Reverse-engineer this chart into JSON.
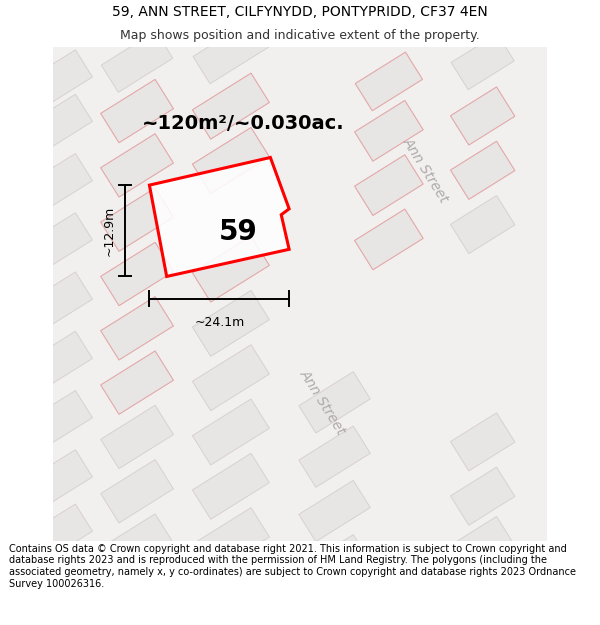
{
  "title_line1": "59, ANN STREET, CILFYNYDD, PONTYPRIDD, CF37 4EN",
  "title_line2": "Map shows position and indicative extent of the property.",
  "footer_text": "Contains OS data © Crown copyright and database right 2021. This information is subject to Crown copyright and database rights 2023 and is reproduced with the permission of HM Land Registry. The polygons (including the associated geometry, namely x, y co-ordinates) are subject to Crown copyright and database rights 2023 Ordnance Survey 100026316.",
  "area_label": "~120m²/~0.030ac.",
  "width_label": "~24.1m",
  "height_label": "~12.9m",
  "number_label": "59",
  "ann_street_label": "Ann Street",
  "map_bg": "#f2f0ef",
  "block_fill": "#e8e6e5",
  "block_edge": "#d8d0ce",
  "lot_edge": "#e8a8a8",
  "road_fill": "#ebe8e7",
  "plot_edge": "#ff0000",
  "plot_fill": "#ffffff",
  "street_band_fill": "#e6e2e1",
  "tilt_deg": 32,
  "title_fontsize": 10,
  "subtitle_fontsize": 9,
  "footer_fontsize": 7,
  "area_fontsize": 14,
  "dim_fontsize": 9,
  "number_fontsize": 20,
  "street_fontsize": 10
}
